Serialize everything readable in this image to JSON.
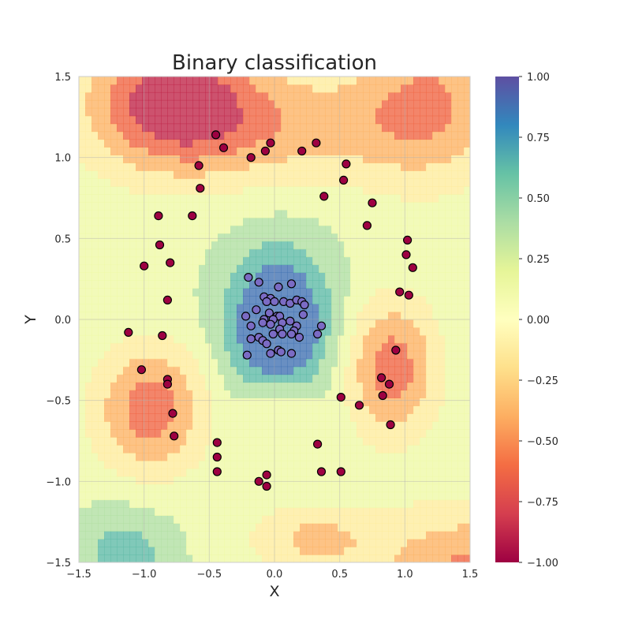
{
  "chart_data": {
    "type": "scatter",
    "title": "Binary classification",
    "xlabel": "X",
    "ylabel": "Y",
    "xlim": [
      -1.5,
      1.5
    ],
    "ylim": [
      -1.5,
      1.5
    ],
    "xticks": [
      -1.5,
      -1.0,
      -0.5,
      0.0,
      0.5,
      1.0,
      1.5
    ],
    "yticks": [
      -1.5,
      -1.0,
      -0.5,
      0.0,
      0.5,
      1.0,
      1.5
    ],
    "xtick_labels": [
      "−1.5",
      "−1.0",
      "−0.5",
      "0.0",
      "0.5",
      "1.0",
      "1.5"
    ],
    "ytick_labels": [
      "−1.5",
      "−1.0",
      "−0.5",
      "0.0",
      "0.5",
      "1.0",
      "1.5"
    ],
    "grid": true,
    "background": "filled contour of classifier decision function, Spectral colormap",
    "colorbar": {
      "range": [
        -1.0,
        1.0
      ],
      "ticks": [
        -1.0,
        -0.75,
        -0.5,
        -0.25,
        0.0,
        0.25,
        0.5,
        0.75,
        1.0
      ],
      "tick_labels": [
        "−1.00",
        "−0.75",
        "−0.50",
        "−0.25",
        "0.00",
        "0.25",
        "0.50",
        "0.75",
        "1.00"
      ],
      "colors": [
        "#9e0142",
        "#d53e4f",
        "#f46d43",
        "#fdae61",
        "#fee08b",
        "#ffffbf",
        "#e6f598",
        "#abdda4",
        "#66c2a5",
        "#3288bd",
        "#5e4fa2"
      ]
    },
    "contour_levels": [
      -1.0,
      -0.75,
      -0.5,
      -0.25,
      0.0,
      0.25,
      0.5,
      0.75,
      1.0
    ],
    "series": [
      {
        "class": 1,
        "color": "#7b6bc4",
        "points": [
          [
            -0.2,
            0.26
          ],
          [
            -0.12,
            0.23
          ],
          [
            -0.08,
            0.14
          ],
          [
            -0.03,
            0.13
          ],
          [
            0.03,
            0.2
          ],
          [
            0.13,
            0.22
          ],
          [
            -0.06,
            0.11
          ],
          [
            0.0,
            0.11
          ],
          [
            0.07,
            0.11
          ],
          [
            0.12,
            0.1
          ],
          [
            0.17,
            0.12
          ],
          [
            0.21,
            0.11
          ],
          [
            0.23,
            0.09
          ],
          [
            -0.14,
            0.06
          ],
          [
            -0.04,
            0.04
          ],
          [
            0.02,
            0.02
          ],
          [
            0.04,
            0.02
          ],
          [
            0.22,
            0.03
          ],
          [
            -0.22,
            0.02
          ],
          [
            -0.08,
            0.0
          ],
          [
            -0.01,
            0.0
          ],
          [
            0.06,
            -0.02
          ],
          [
            0.12,
            -0.01
          ],
          [
            0.17,
            -0.04
          ],
          [
            -0.18,
            -0.04
          ],
          [
            -0.09,
            -0.02
          ],
          [
            -0.03,
            -0.03
          ],
          [
            0.04,
            -0.06
          ],
          [
            0.15,
            -0.07
          ],
          [
            0.36,
            -0.04
          ],
          [
            -0.01,
            -0.09
          ],
          [
            0.06,
            -0.09
          ],
          [
            0.13,
            -0.09
          ],
          [
            0.19,
            -0.11
          ],
          [
            0.33,
            -0.09
          ],
          [
            -0.18,
            -0.12
          ],
          [
            -0.12,
            -0.11
          ],
          [
            -0.09,
            -0.13
          ],
          [
            -0.06,
            -0.15
          ],
          [
            0.03,
            -0.19
          ],
          [
            0.05,
            -0.2
          ],
          [
            -0.21,
            -0.22
          ],
          [
            -0.03,
            -0.21
          ],
          [
            0.13,
            -0.21
          ]
        ]
      },
      {
        "class": -1,
        "color": "#9e0142",
        "points": [
          [
            -0.45,
            1.14
          ],
          [
            -0.39,
            1.06
          ],
          [
            -0.58,
            0.95
          ],
          [
            -0.57,
            0.81
          ],
          [
            -0.18,
            1.0
          ],
          [
            -0.07,
            1.04
          ],
          [
            -0.03,
            1.09
          ],
          [
            0.21,
            1.04
          ],
          [
            0.32,
            1.09
          ],
          [
            0.55,
            0.96
          ],
          [
            0.53,
            0.86
          ],
          [
            0.38,
            0.76
          ],
          [
            0.75,
            0.72
          ],
          [
            0.71,
            0.58
          ],
          [
            1.02,
            0.49
          ],
          [
            1.01,
            0.4
          ],
          [
            1.06,
            0.32
          ],
          [
            0.96,
            0.17
          ],
          [
            1.03,
            0.15
          ],
          [
            -0.89,
            0.64
          ],
          [
            -0.63,
            0.64
          ],
          [
            -0.88,
            0.46
          ],
          [
            -0.8,
            0.35
          ],
          [
            -1.0,
            0.33
          ],
          [
            -0.82,
            0.12
          ],
          [
            -1.12,
            -0.08
          ],
          [
            -0.86,
            -0.1
          ],
          [
            -1.02,
            -0.31
          ],
          [
            -0.82,
            -0.37
          ],
          [
            -0.82,
            -0.4
          ],
          [
            -0.78,
            -0.58
          ],
          [
            -0.77,
            -0.72
          ],
          [
            0.93,
            -0.19
          ],
          [
            0.82,
            -0.36
          ],
          [
            0.88,
            -0.4
          ],
          [
            0.83,
            -0.47
          ],
          [
            0.51,
            -0.48
          ],
          [
            0.65,
            -0.53
          ],
          [
            0.89,
            -0.65
          ],
          [
            -0.44,
            -0.76
          ],
          [
            -0.44,
            -0.85
          ],
          [
            -0.44,
            -0.94
          ],
          [
            0.33,
            -0.77
          ],
          [
            0.36,
            -0.94
          ],
          [
            0.51,
            -0.94
          ],
          [
            -0.06,
            -0.96
          ],
          [
            -0.12,
            -1.0
          ],
          [
            -0.06,
            -1.03
          ]
        ]
      }
    ]
  }
}
